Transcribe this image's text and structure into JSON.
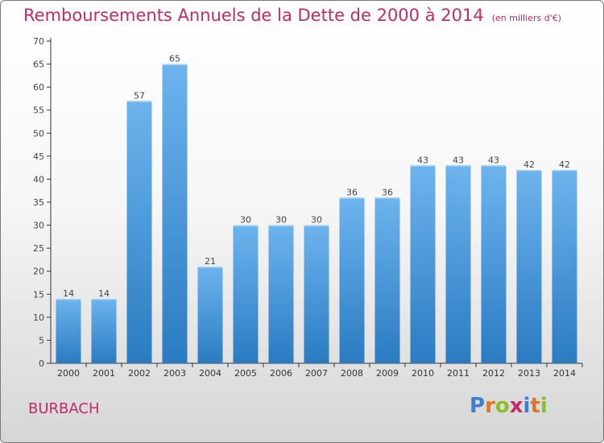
{
  "header": {
    "title": "Remboursements Annuels de la Dette de 2000 à 2014",
    "unit": "(en milliers d'€)"
  },
  "commune": "BURBACH",
  "logo": {
    "text": "Proxiti",
    "letters": [
      {
        "ch": "P",
        "color": "#3a7fd0"
      },
      {
        "ch": "r",
        "color": "#e0762a"
      },
      {
        "ch": "o",
        "color": "#8bbf2a"
      },
      {
        "ch": "x",
        "color": "#c4296a"
      },
      {
        "ch": "i",
        "color": "#3a7fd0"
      },
      {
        "ch": "t",
        "color": "#e0762a"
      },
      {
        "ch": "i",
        "color": "#8bbf2a"
      }
    ]
  },
  "colors": {
    "bar_light": "#6db4ee",
    "bar_dark": "#2a7bc2",
    "title": "#c4296a",
    "axis": "#333333"
  },
  "chart_data": {
    "type": "bar",
    "title": "Remboursements Annuels de la Dette de 2000 à 2014",
    "subtitle": "(en milliers d'€)",
    "xlabel": "",
    "ylabel": "",
    "categories": [
      "2000",
      "2001",
      "2002",
      "2003",
      "2004",
      "2005",
      "2006",
      "2007",
      "2008",
      "2009",
      "2010",
      "2011",
      "2012",
      "2013",
      "2014"
    ],
    "values": [
      14,
      14,
      57,
      65,
      21,
      30,
      30,
      30,
      36,
      36,
      43,
      43,
      43,
      42,
      42
    ],
    "ylim": [
      0,
      70
    ],
    "yticks": [
      0,
      5,
      10,
      15,
      20,
      25,
      30,
      35,
      40,
      45,
      50,
      55,
      60,
      65,
      70
    ],
    "grid": false,
    "data_labels": true
  }
}
